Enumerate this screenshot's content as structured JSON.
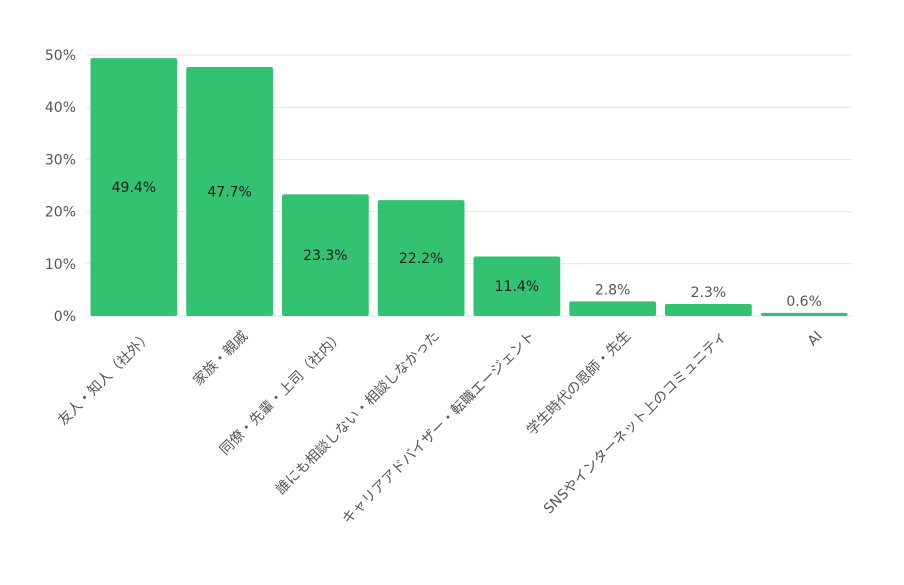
{
  "chart_data": {
    "type": "bar",
    "categories": [
      "友人・知人（社外）",
      "家族・親戚",
      "同僚・先輩・上司（社内）",
      "誰にも相談しない・相談しなかった",
      "キャリアアドバイザー・転職エージェント",
      "学生時代の恩師・先生",
      "SNSやインターネット上のコミュニティ",
      "AI"
    ],
    "values": [
      49.4,
      47.7,
      23.3,
      22.2,
      11.4,
      2.8,
      2.3,
      0.6
    ],
    "data_labels": [
      "49.4%",
      "47.7%",
      "23.3%",
      "22.2%",
      "11.4%",
      "2.8%",
      "2.3%",
      "0.6%"
    ],
    "y_ticks": [
      0,
      10,
      20,
      30,
      40,
      50
    ],
    "y_tick_labels": [
      "0%",
      "10%",
      "20%",
      "30%",
      "40%",
      "50%"
    ],
    "ylim": [
      0,
      50
    ],
    "grid": true,
    "bar_color": "#33c272",
    "title": "",
    "xlabel": "",
    "ylabel": ""
  }
}
